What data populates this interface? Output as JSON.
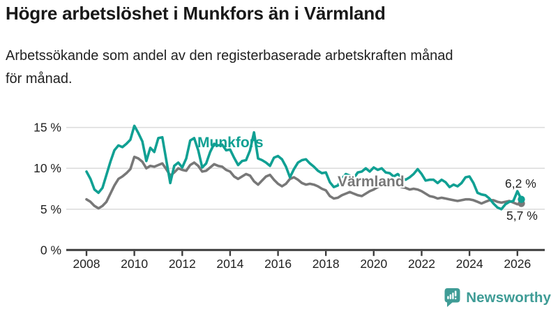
{
  "header": {
    "title": "Högre arbetslöshet i Munkfors än i Värmland",
    "subtitle_line1": "Arbetssökande som andel av den registerbaserade arbetskraften månad",
    "subtitle_line2": "för månad."
  },
  "chart_data": {
    "type": "line",
    "title": "Högre arbetslöshet i Munkfors än i Värmland",
    "subtitle": "Arbetssökande som andel av den registerbaserade arbetskraften månad för månad.",
    "unit": "%",
    "grid": "horizontal-only",
    "x_axis": {
      "range_years": [
        2008,
        2026.17
      ],
      "ticks": [
        {
          "value": 2008,
          "label": "2008"
        },
        {
          "value": 2010,
          "label": "2010"
        },
        {
          "value": 2012,
          "label": "2012"
        },
        {
          "value": 2014,
          "label": "2014"
        },
        {
          "value": 2016,
          "label": "2016"
        },
        {
          "value": 2018,
          "label": "2018"
        },
        {
          "value": 2020,
          "label": "2020"
        },
        {
          "value": 2022,
          "label": "2022"
        },
        {
          "value": 2024,
          "label": "2024"
        },
        {
          "value": 2026,
          "label": "2026"
        }
      ]
    },
    "y_axis": {
      "range": [
        0,
        15.5
      ],
      "ticks": [
        {
          "value": 0,
          "label": "0 %"
        },
        {
          "value": 5,
          "label": "5 %"
        },
        {
          "value": 10,
          "label": "10 %"
        },
        {
          "value": 15,
          "label": "15 %"
        }
      ]
    },
    "series": [
      {
        "name": "Munkfors",
        "color": "#10a093",
        "start_year": 2008.0,
        "step_years": 0.166667,
        "end_label": "6,2 %",
        "end_value": 6.2,
        "values": [
          9.6,
          8.7,
          7.4,
          7.0,
          7.6,
          9.2,
          10.8,
          12.2,
          12.8,
          12.6,
          13.0,
          13.5,
          15.2,
          14.3,
          13.3,
          10.9,
          12.5,
          12.0,
          13.7,
          13.8,
          11.0,
          8.2,
          10.3,
          10.7,
          10.1,
          11.2,
          13.4,
          13.7,
          12.2,
          10.1,
          10.6,
          12.0,
          13.0,
          12.8,
          12.9,
          12.2,
          12.3,
          11.3,
          10.4,
          10.9,
          11.0,
          12.2,
          14.4,
          11.2,
          11.0,
          10.7,
          10.3,
          11.3,
          11.5,
          11.1,
          10.2,
          8.9,
          9.9,
          10.7,
          11.0,
          11.1,
          10.6,
          10.2,
          9.7,
          9.4,
          9.5,
          8.3,
          7.7,
          7.9,
          8.7,
          9.3,
          9.1,
          8.8,
          9.5,
          9.6,
          10.0,
          9.6,
          10.1,
          9.8,
          10.0,
          9.5,
          9.4,
          9.0,
          9.3,
          8.9,
          8.6,
          8.9,
          9.3,
          9.9,
          9.3,
          8.5,
          8.6,
          8.6,
          8.2,
          8.6,
          8.3,
          7.7,
          8.0,
          7.8,
          8.2,
          8.9,
          9.0,
          8.2,
          7.0,
          6.8,
          6.7,
          6.3,
          5.7,
          5.2,
          5.0,
          5.6,
          5.9,
          6.0,
          7.2,
          6.2
        ]
      },
      {
        "name": "Värmland",
        "color": "#787878",
        "start_year": 2008.0,
        "step_years": 0.166667,
        "end_label": "5,7 %",
        "end_value": 5.7,
        "values": [
          6.2,
          5.9,
          5.4,
          5.1,
          5.4,
          5.9,
          6.9,
          7.9,
          8.7,
          9.0,
          9.4,
          9.9,
          11.4,
          11.2,
          10.8,
          10.0,
          10.3,
          10.2,
          10.4,
          10.6,
          9.9,
          9.1,
          9.5,
          10.0,
          9.8,
          9.7,
          10.4,
          10.7,
          10.3,
          9.6,
          9.7,
          10.1,
          10.5,
          10.3,
          10.2,
          9.8,
          9.6,
          9.0,
          8.7,
          9.0,
          9.3,
          9.1,
          8.4,
          8.0,
          8.5,
          9.0,
          9.2,
          8.6,
          8.1,
          7.8,
          8.1,
          8.7,
          8.9,
          8.6,
          8.2,
          8.0,
          8.1,
          8.0,
          7.8,
          7.5,
          7.3,
          6.6,
          6.3,
          6.4,
          6.7,
          6.9,
          7.1,
          6.9,
          6.7,
          6.6,
          6.9,
          7.2,
          7.4,
          7.7,
          7.9,
          8.0,
          7.9,
          7.8,
          7.9,
          7.7,
          7.6,
          7.4,
          7.5,
          7.4,
          7.2,
          6.9,
          6.6,
          6.5,
          6.3,
          6.4,
          6.3,
          6.2,
          6.1,
          6.0,
          6.1,
          6.2,
          6.2,
          6.1,
          5.9,
          5.7,
          5.9,
          6.1,
          6.1,
          5.9,
          5.8,
          5.9,
          6.0,
          5.8,
          5.6,
          5.7
        ]
      }
    ],
    "legend_position": "inline-labels"
  },
  "footer": {
    "brand": "Newsworthy"
  },
  "colors": {
    "munkfors": "#10a093",
    "varmland": "#787878",
    "brand_teal": "#3f9c96",
    "grid": "#dddddd",
    "axis": "#3d3d3d"
  }
}
